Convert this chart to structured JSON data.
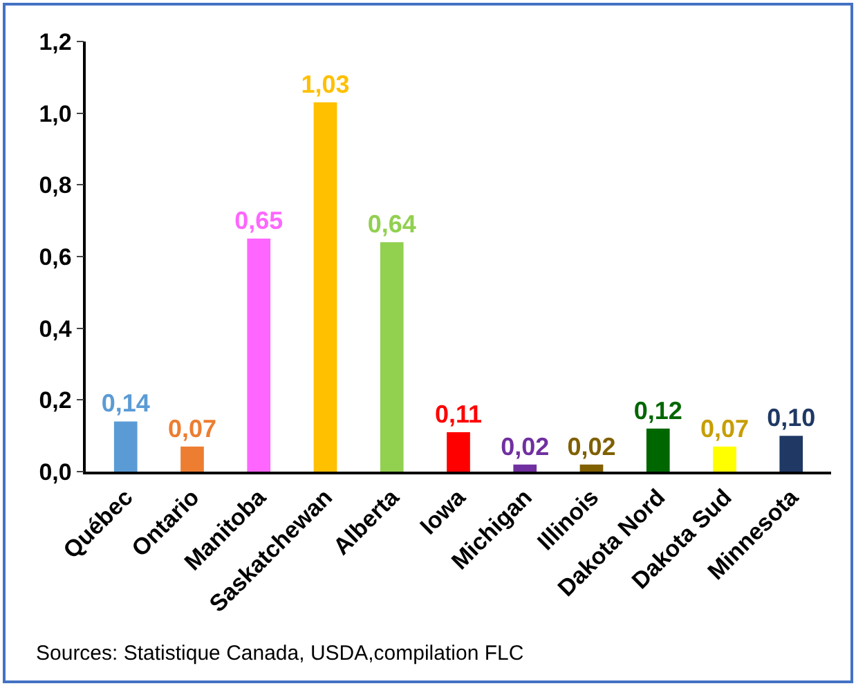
{
  "chart_data": {
    "type": "bar",
    "categories": [
      "Québec",
      "Ontario",
      "Manitoba",
      "Saskatchewan",
      "Alberta",
      "Iowa",
      "Michigan",
      "Illinois",
      "Dakota Nord",
      "Dakota Sud",
      "Minnesota"
    ],
    "values": [
      0.14,
      0.07,
      0.65,
      1.03,
      0.64,
      0.11,
      0.02,
      0.02,
      0.12,
      0.07,
      0.1
    ],
    "value_labels": [
      "0,14",
      "0,07",
      "0,65",
      "1,03",
      "0,64",
      "0,11",
      "0,02",
      "0,02",
      "0,12",
      "0,07",
      "0,10"
    ],
    "colors": [
      "#5b9bd5",
      "#ed7d31",
      "#ff66ff",
      "#ffc000",
      "#92d050",
      "#ff0000",
      "#7030a0",
      "#806000",
      "#006600",
      "#ffff00",
      "#1f3864"
    ],
    "ylim": [
      0,
      1.2
    ],
    "yticks": [
      {
        "value": 0,
        "label": "0,0"
      },
      {
        "value": 0.2,
        "label": "0,2"
      },
      {
        "value": 0.4,
        "label": "0,4"
      },
      {
        "value": 0.6,
        "label": "0,6"
      },
      {
        "value": 0.8,
        "label": "0,8"
      },
      {
        "value": 1.0,
        "label": "1,0"
      },
      {
        "value": 1.2,
        "label": "1,2"
      }
    ],
    "annotations": [
      "Sources: Statistique Canada, USDA,compilation FLC"
    ]
  }
}
